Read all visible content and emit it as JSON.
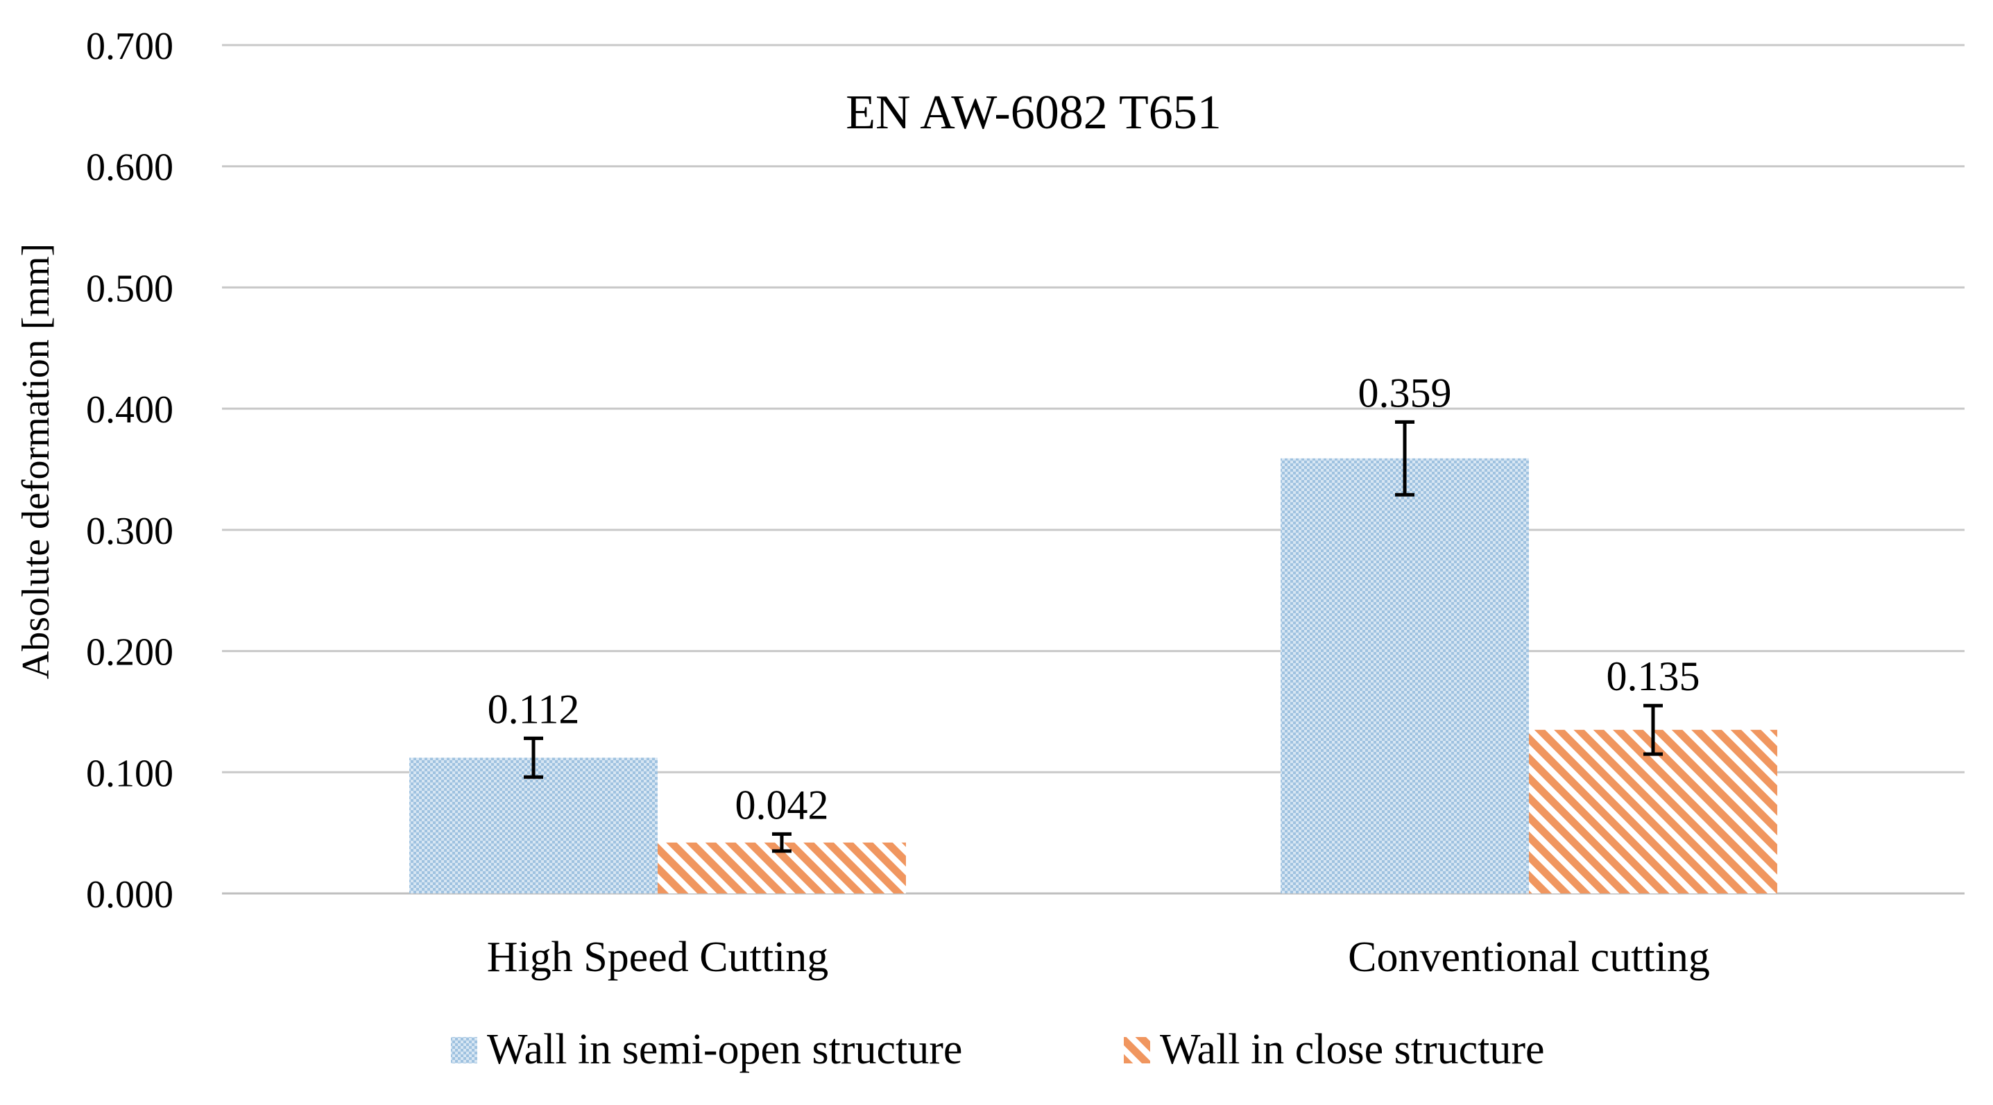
{
  "chart_data": {
    "type": "bar",
    "title": "EN AW-6082 T651",
    "xlabel": "",
    "ylabel": "Absolute deformation [mm]",
    "ylim": [
      0,
      0.7
    ],
    "yticks": [
      "0.000",
      "0.100",
      "0.200",
      "0.300",
      "0.400",
      "0.500",
      "0.600",
      "0.700"
    ],
    "grid": true,
    "legend_position": "bottom",
    "categories": [
      "High Speed Cutting",
      "Conventional cutting"
    ],
    "series": [
      {
        "name": "Wall in semi-open structure",
        "values": [
          0.112,
          0.359
        ],
        "labels": [
          "0.112",
          "0.359"
        ],
        "errors": [
          0.016,
          0.03
        ],
        "color": "#b4cfe6",
        "pattern": "dotted"
      },
      {
        "name": "Wall in close structure",
        "values": [
          0.042,
          0.135
        ],
        "labels": [
          "0.042",
          "0.135"
        ],
        "errors": [
          0.007,
          0.02
        ],
        "color": "#f4ad84",
        "pattern": "diagonal-stripes"
      }
    ]
  }
}
